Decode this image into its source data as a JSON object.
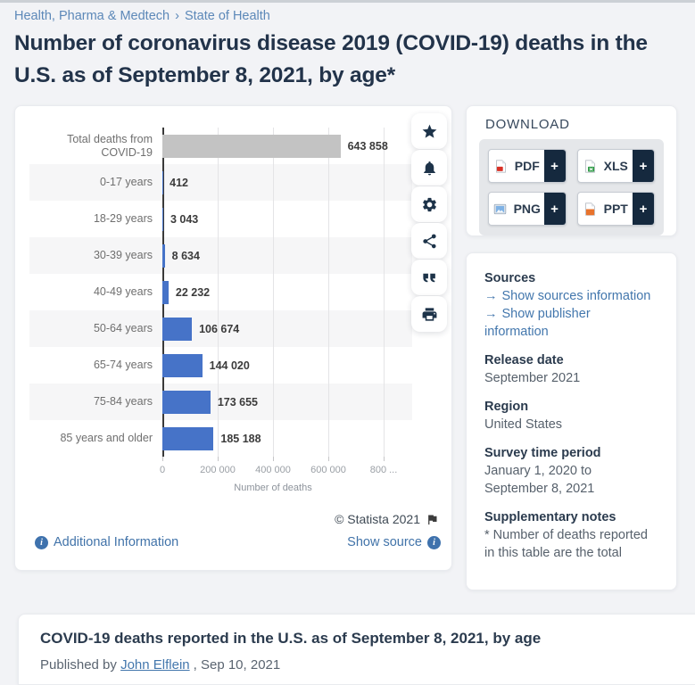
{
  "page": {
    "breadcrumb": {
      "section": "Health, Pharma & Medtech",
      "separator": "›",
      "subsection": "State of Health"
    },
    "title": "Number of coronavirus disease 2019 (COVID-19) deaths in the U.S. as of September 8, 2021, by age*"
  },
  "chart_data": {
    "type": "bar",
    "orientation": "horizontal",
    "title": "Number of coronavirus disease 2019 (COVID-19) deaths in the U.S. as of September 8, 2021, by age",
    "categories": [
      "Total deaths from COVID-19",
      "0-17 years",
      "18-29 years",
      "30-39 years",
      "40-49 years",
      "50-64 years",
      "65-74 years",
      "75-84 years",
      "85 years and older"
    ],
    "values": [
      643858,
      412,
      3043,
      8634,
      22232,
      106674,
      144020,
      173655,
      185188
    ],
    "value_labels": [
      "643 858",
      "412",
      "3 043",
      "8 634",
      "22 232",
      "106 674",
      "144 020",
      "173 655",
      "185 188"
    ],
    "bar_colors": [
      "#c3c3c3",
      "#4673c8",
      "#4673c8",
      "#4673c8",
      "#4673c8",
      "#4673c8",
      "#4673c8",
      "#4673c8",
      "#4673c8"
    ],
    "xlabel": "Number of deaths",
    "x_ticks": [
      "0",
      "200 000",
      "400 000",
      "600 000",
      "800 ..."
    ],
    "x_tick_values": [
      0,
      200000,
      400000,
      600000,
      800000
    ],
    "xlim": [
      0,
      880000
    ],
    "grid": true,
    "legend": false,
    "stripe_color": "#f6f6f7",
    "accent_color": "#4673c8",
    "total_bar_color": "#c3c3c3"
  },
  "chart_footer": {
    "copyright": "© Statista 2021",
    "additional_info": "Additional Information",
    "show_source": "Show source"
  },
  "toolbar": {
    "buttons": [
      "favorite",
      "notifications",
      "settings",
      "share",
      "cite",
      "print"
    ]
  },
  "download": {
    "title": "DOWNLOAD",
    "plus": "+",
    "formats": [
      {
        "label": "PDF"
      },
      {
        "label": "XLS"
      },
      {
        "label": "PNG"
      },
      {
        "label": "PPT"
      }
    ]
  },
  "details": {
    "sources_title": "Sources",
    "source_links": [
      {
        "arrow": "→",
        "label": "Show sources information"
      },
      {
        "arrow": "→",
        "label": "Show publisher information"
      }
    ],
    "release_title": "Release date",
    "release_value": "September 2021",
    "region_title": "Region",
    "region_value": "United States",
    "survey_title": "Survey time period",
    "survey_value": "January 1, 2020 to September 8, 2021",
    "notes_title": "Supplementary notes",
    "notes_value": "* Number of deaths reported in this table are the total"
  },
  "bottom": {
    "heading": "COVID-19 deaths reported in the U.S. as of September 8, 2021, by age",
    "published_prefix": "Published by",
    "author": "John Elflein",
    "published_suffix": ", Sep 10, 2021"
  }
}
